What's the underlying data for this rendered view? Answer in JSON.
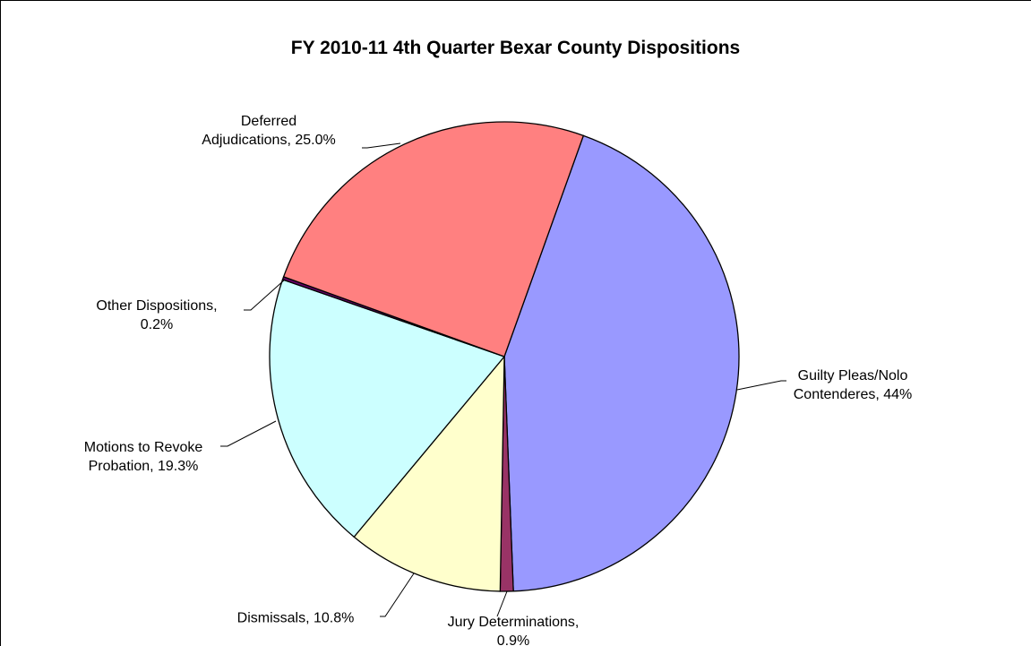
{
  "chart_data": {
    "type": "pie",
    "title": "FY 2010-11 4th Quarter Bexar County Dispositions",
    "labels": [
      "Guilty Pleas/Nolo\nContenderes, 44%",
      "Jury Determinations,\n0.9%",
      "Dismissals, 10.8%",
      "Motions to Revoke\nProbation, 19.3%",
      "Other Dispositions,\n0.2%",
      "Deferred\nAdjudications, 25.0%"
    ],
    "values": [
      44,
      0.9,
      10.8,
      19.3,
      0.2,
      25.0
    ],
    "colors": [
      "#9999ff",
      "#993366",
      "#ffffcc",
      "#ccffff",
      "#660066",
      "#ff8080"
    ]
  }
}
